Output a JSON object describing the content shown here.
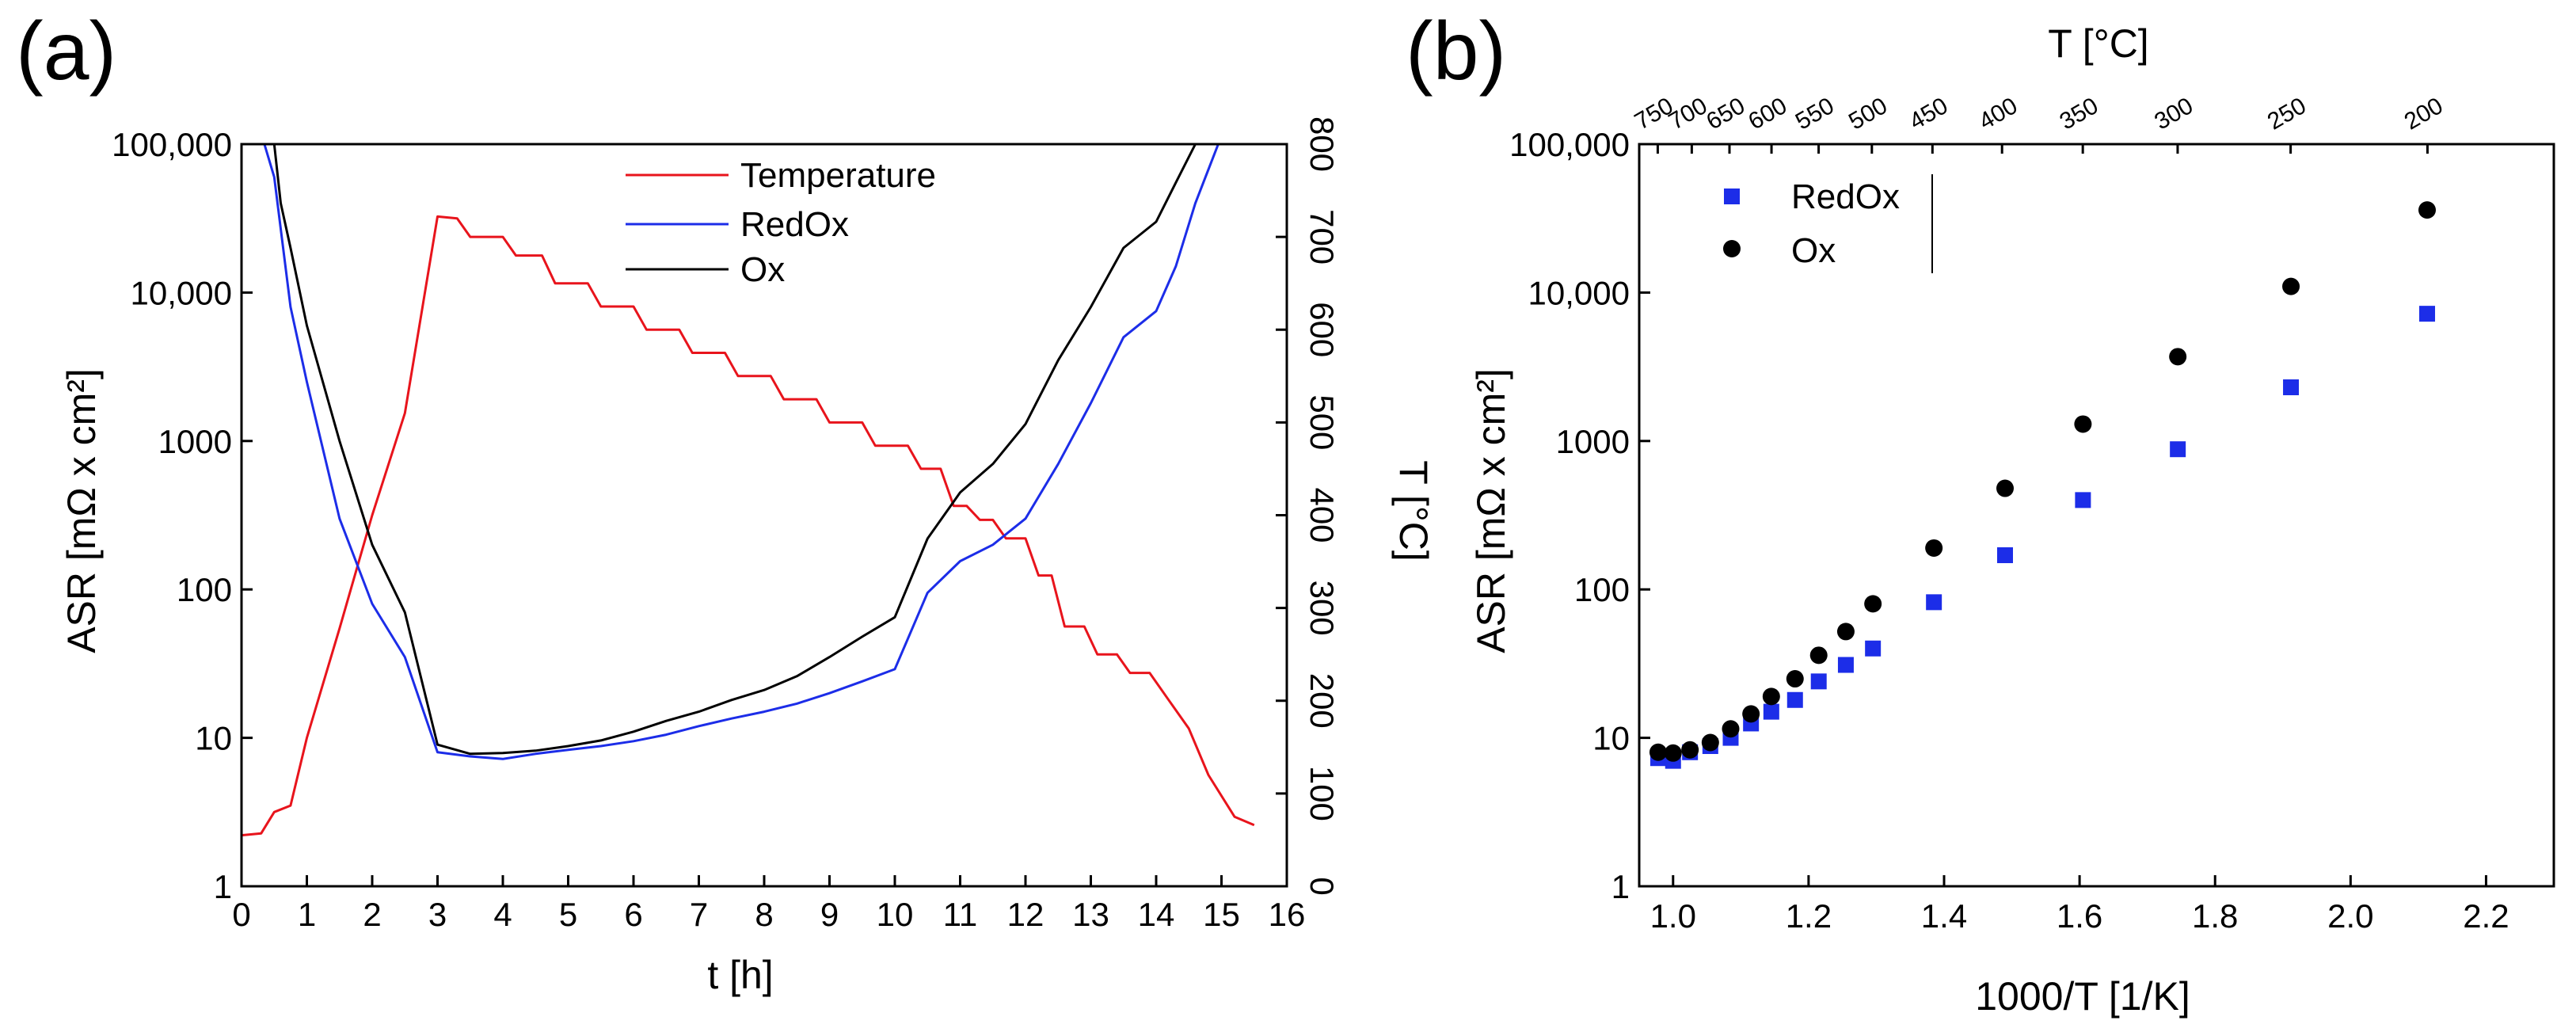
{
  "figure": {
    "panels": [
      "(a)",
      "(b)"
    ]
  },
  "chart_data": [
    {
      "type": "line",
      "panel": "(a)",
      "xlabel": "t [h]",
      "ylabel": "ASR [mΩ x cm²]",
      "y2label": "T [°C]",
      "xlim": [
        0,
        16
      ],
      "ylim": [
        1,
        100000
      ],
      "yscale": "log",
      "y2lim": [
        0,
        800
      ],
      "x_ticks": [
        "0",
        "1",
        "2",
        "3",
        "4",
        "5",
        "6",
        "7",
        "8",
        "9",
        "10",
        "11",
        "12",
        "13",
        "14",
        "15",
        "16"
      ],
      "y_ticks": [
        "1",
        "10",
        "100",
        "1000",
        "10,000",
        "100,000"
      ],
      "y2_ticks": [
        "0",
        "100",
        "200",
        "300",
        "400",
        "500",
        "600",
        "700",
        "800"
      ],
      "legend_position": "top-center",
      "grid": false,
      "series": [
        {
          "name": "Temperature",
          "axis": "right",
          "color": "#e8141c",
          "x": [
            0,
            0.3,
            0.5,
            0.75,
            1.0,
            1.5,
            2.0,
            2.5,
            3.0,
            3.3,
            3.5,
            4.0,
            4.2,
            4.6,
            4.8,
            5.3,
            5.5,
            6.0,
            6.2,
            6.7,
            6.9,
            7.4,
            7.6,
            8.1,
            8.3,
            8.8,
            9.0,
            9.5,
            9.7,
            10.2,
            10.4,
            10.7,
            10.9,
            11.1,
            11.3,
            11.5,
            11.7,
            12.0,
            12.2,
            12.4,
            12.6,
            12.9,
            13.1,
            13.4,
            13.6,
            13.9,
            14.2,
            14.5,
            14.8,
            15.2,
            15.5
          ],
          "y": [
            55,
            57,
            80,
            87,
            160,
            278,
            400,
            510,
            722,
            720,
            700,
            700,
            680,
            680,
            650,
            650,
            625,
            625,
            600,
            600,
            575,
            575,
            550,
            550,
            525,
            525,
            500,
            500,
            475,
            475,
            450,
            450,
            410,
            410,
            395,
            395,
            375,
            375,
            335,
            335,
            280,
            280,
            250,
            250,
            230,
            230,
            200,
            170,
            120,
            75,
            66
          ]
        },
        {
          "name": "RedOx",
          "axis": "left",
          "color": "#1c2de8",
          "x": [
            0.35,
            0.5,
            0.75,
            1.0,
            1.5,
            2.0,
            2.5,
            3.0,
            3.5,
            4.0,
            4.5,
            5.0,
            5.5,
            6.0,
            6.5,
            7.0,
            7.5,
            8.0,
            8.5,
            9.0,
            9.5,
            10.0,
            10.5,
            11.0,
            11.5,
            12.0,
            12.5,
            13.0,
            13.5,
            14.0,
            14.3,
            14.6,
            14.95
          ],
          "y": [
            100000,
            60000,
            8000,
            2500,
            300,
            80,
            35,
            8,
            7.5,
            7.2,
            7.8,
            8.3,
            8.8,
            9.5,
            10.5,
            12,
            13.5,
            15,
            17,
            20,
            24,
            29,
            95,
            155,
            200,
            300,
            700,
            1800,
            5000,
            7500,
            15000,
            40000,
            100000
          ]
        },
        {
          "name": "Ox",
          "axis": "left",
          "color": "#000000",
          "x": [
            0.5,
            0.6,
            0.75,
            1.0,
            1.5,
            2.0,
            2.5,
            3.0,
            3.5,
            4.0,
            4.5,
            5.0,
            5.5,
            6.0,
            6.5,
            7.0,
            7.5,
            8.0,
            8.5,
            9.0,
            9.5,
            10.0,
            10.5,
            11.0,
            11.5,
            12.0,
            12.5,
            13.0,
            13.5,
            14.0,
            14.3,
            14.6
          ],
          "y": [
            100000,
            40000,
            20000,
            6000,
            1000,
            200,
            70,
            9,
            7.8,
            7.9,
            8.2,
            8.8,
            9.6,
            11,
            13,
            15,
            18,
            21,
            26,
            35,
            48,
            65,
            220,
            450,
            700,
            1300,
            3500,
            8000,
            20000,
            30000,
            55000,
            100000
          ]
        }
      ]
    },
    {
      "type": "scatter",
      "panel": "(b)",
      "xlabel": "1000/T [1/K]",
      "ylabel": "ASR [mΩ x cm²]",
      "x2label": "T [°C]",
      "xlim": [
        0.95,
        2.3
      ],
      "ylim": [
        1,
        100000
      ],
      "yscale": "log",
      "x_ticks": [
        "1.0",
        "1.2",
        "1.4",
        "1.6",
        "1.8",
        "2.0",
        "2.2"
      ],
      "y_ticks": [
        "1",
        "10",
        "100",
        "1000",
        "10,000",
        "100,000"
      ],
      "top_ticks": [
        "750",
        "700",
        "650",
        "600",
        "550",
        "500",
        "450",
        "400",
        "350",
        "300",
        "250",
        "200"
      ],
      "legend_position": "top-left",
      "grid": false,
      "series": [
        {
          "name": "RedOx",
          "marker": "square",
          "color": "#1c2de8",
          "x": [
            0.978,
            1.0,
            1.025,
            1.055,
            1.085,
            1.115,
            1.145,
            1.18,
            1.215,
            1.255,
            1.295,
            1.385,
            1.49,
            1.605,
            1.745,
            1.912,
            2.113
          ],
          "y": [
            7.3,
            7.0,
            8.0,
            8.8,
            10.0,
            12.5,
            15.0,
            18.0,
            24.0,
            31.0,
            40.0,
            82.0,
            170.0,
            400.0,
            880.0,
            2300.0,
            7200.0
          ]
        },
        {
          "name": "Ox",
          "marker": "circle",
          "color": "#000000",
          "x": [
            0.978,
            1.0,
            1.025,
            1.055,
            1.085,
            1.115,
            1.145,
            1.18,
            1.215,
            1.255,
            1.295,
            1.385,
            1.49,
            1.605,
            1.745,
            1.912,
            2.113
          ],
          "y": [
            8.0,
            7.9,
            8.3,
            9.3,
            11.5,
            14.5,
            19.0,
            25.0,
            36.0,
            52.0,
            80.0,
            190.0,
            480.0,
            1300.0,
            3700.0,
            11000.0,
            36000.0
          ]
        }
      ]
    }
  ]
}
